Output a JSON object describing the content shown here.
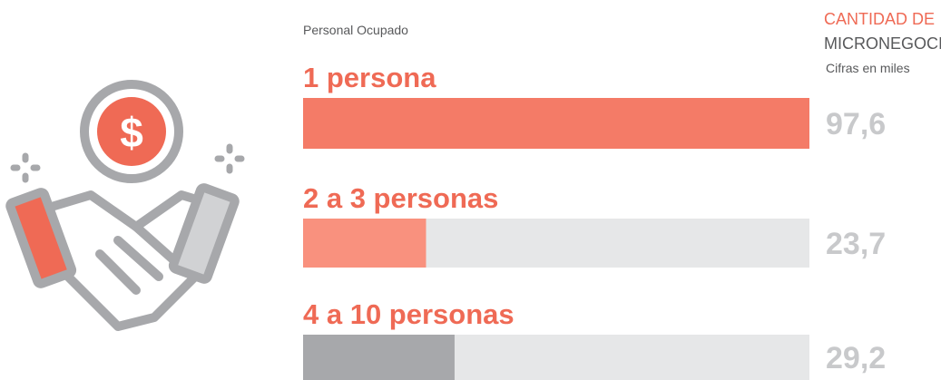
{
  "chart_data": {
    "type": "bar",
    "orientation": "horizontal",
    "x_label": "Personal Ocupado",
    "title_lines": [
      "CANTIDAD DE",
      "MICRONEGOCIOS"
    ],
    "subtitle": "Cifras en miles",
    "categories": [
      "1 persona",
      "2 a 3 personas",
      "4 a 10 personas"
    ],
    "values": [
      97.6,
      23.7,
      29.2
    ],
    "value_labels": [
      "97,6",
      "23,7",
      "29,2"
    ],
    "colors": [
      "#f47b67",
      "#f9917e",
      "#a7a8ab"
    ],
    "track_color": "#e6e7e8",
    "xlim": [
      0,
      97.6
    ]
  }
}
